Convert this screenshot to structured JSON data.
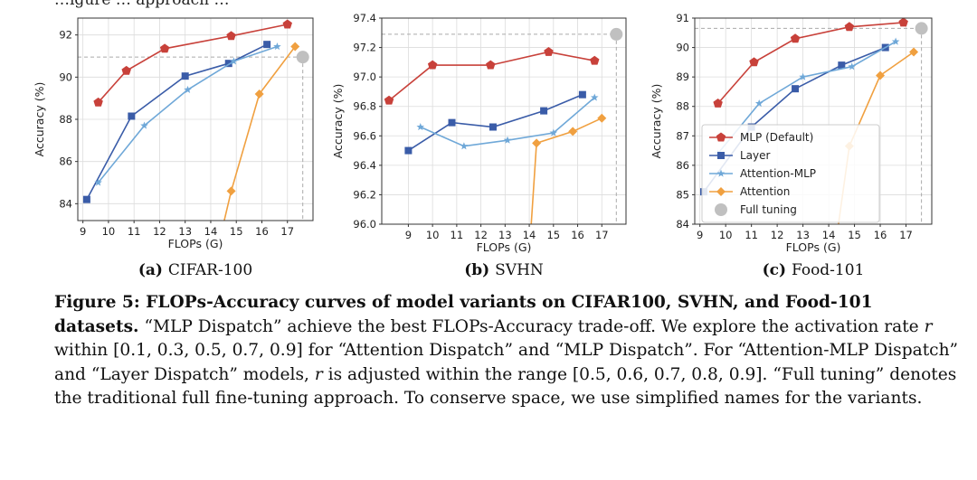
{
  "chart_data": [
    {
      "type": "line",
      "subtitle_letter": "(a)",
      "subtitle": "CIFAR-100",
      "xlabel": "FLOPs (G)",
      "ylabel": "Accuracy (%)",
      "xlim": [
        8.8,
        18.0
      ],
      "ylim": [
        83.2,
        92.8
      ],
      "xticks": [
        9,
        10,
        11,
        12,
        13,
        14,
        15,
        16,
        17
      ],
      "yticks": [
        84,
        86,
        88,
        90,
        92
      ],
      "grid": true,
      "ref_y": 90.95,
      "series": [
        {
          "name": "MLP (Default)",
          "color": "#c8413a",
          "marker": "pentagon",
          "x": [
            9.6,
            10.7,
            12.2,
            14.8,
            17.0
          ],
          "y": [
            88.8,
            90.3,
            91.35,
            91.95,
            92.5
          ]
        },
        {
          "name": "Layer",
          "color": "#3a5ca8",
          "marker": "square",
          "x": [
            9.15,
            10.9,
            13.0,
            14.7,
            16.2
          ],
          "y": [
            84.2,
            88.15,
            90.05,
            90.65,
            91.55
          ]
        },
        {
          "name": "Attention-MLP",
          "color": "#6fa8d8",
          "marker": "star",
          "x": [
            9.6,
            11.4,
            13.1,
            14.9,
            16.6
          ],
          "y": [
            85.0,
            87.7,
            89.4,
            90.75,
            91.45
          ]
        },
        {
          "name": "Attention",
          "color": "#f0a040",
          "marker": "diamond",
          "x": [
            14.1,
            14.8,
            15.9,
            17.3
          ],
          "y": [
            81.0,
            84.6,
            89.2,
            91.45
          ]
        },
        {
          "name": "Full tuning",
          "color": "#c0c0c0",
          "marker": "circle",
          "x": [
            17.6
          ],
          "y": [
            90.95
          ]
        }
      ]
    },
    {
      "type": "line",
      "subtitle_letter": "(b)",
      "subtitle": "SVHN",
      "xlabel": "FLOPs (G)",
      "ylabel": "Accuracy (%)",
      "xlim": [
        7.9,
        18.0
      ],
      "ylim": [
        96.0,
        97.4
      ],
      "xticks": [
        9,
        10,
        11,
        12,
        13,
        14,
        15,
        16,
        17
      ],
      "yticks": [
        96.0,
        96.2,
        96.4,
        96.6,
        96.8,
        97.0,
        97.2,
        97.4
      ],
      "grid": true,
      "ref_y": 97.29,
      "series": [
        {
          "name": "MLP (Default)",
          "color": "#c8413a",
          "marker": "pentagon",
          "x": [
            8.2,
            10.0,
            12.4,
            14.8,
            16.7
          ],
          "y": [
            96.84,
            97.08,
            97.08,
            97.17,
            97.11
          ]
        },
        {
          "name": "Layer",
          "color": "#3a5ca8",
          "marker": "square",
          "x": [
            9.0,
            10.8,
            12.5,
            14.6,
            16.2
          ],
          "y": [
            96.5,
            96.69,
            96.66,
            96.77,
            96.88
          ]
        },
        {
          "name": "Attention-MLP",
          "color": "#6fa8d8",
          "marker": "star",
          "x": [
            9.5,
            11.3,
            13.1,
            15.0,
            16.7
          ],
          "y": [
            96.66,
            96.53,
            96.57,
            96.62,
            96.86
          ]
        },
        {
          "name": "Attention",
          "color": "#f0a040",
          "marker": "diamond",
          "x": [
            14.0,
            14.3,
            15.8,
            17.0
          ],
          "y": [
            95.8,
            96.55,
            96.63,
            96.72
          ]
        },
        {
          "name": "Full tuning",
          "color": "#c0c0c0",
          "marker": "circle",
          "x": [
            17.6
          ],
          "y": [
            97.29
          ]
        }
      ]
    },
    {
      "type": "line",
      "subtitle_letter": "(c)",
      "subtitle": "Food-101",
      "xlabel": "FLOPs (G)",
      "ylabel": "Accuracy (%)",
      "xlim": [
        8.8,
        18.0
      ],
      "ylim": [
        84.0,
        91.0
      ],
      "xticks": [
        9,
        10,
        11,
        12,
        13,
        14,
        15,
        16,
        17
      ],
      "yticks": [
        84,
        85,
        86,
        87,
        88,
        89,
        90,
        91
      ],
      "grid": true,
      "ref_y": 90.65,
      "legend": "center-right",
      "series": [
        {
          "name": "MLP (Default)",
          "color": "#c8413a",
          "marker": "pentagon",
          "x": [
            9.7,
            11.1,
            12.7,
            14.8,
            16.9
          ],
          "y": [
            88.1,
            89.5,
            90.3,
            90.7,
            90.85
          ]
        },
        {
          "name": "Layer",
          "color": "#3a5ca8",
          "marker": "square",
          "x": [
            9.15,
            11.0,
            12.7,
            14.5,
            16.2
          ],
          "y": [
            85.1,
            87.3,
            88.6,
            89.4,
            90.0
          ]
        },
        {
          "name": "Attention-MLP",
          "color": "#6fa8d8",
          "marker": "star",
          "x": [
            9.7,
            11.3,
            13.0,
            14.9,
            16.6
          ],
          "y": [
            86.4,
            88.1,
            89.0,
            89.35,
            90.2
          ]
        },
        {
          "name": "Attention",
          "color": "#f0a040",
          "marker": "diamond",
          "x": [
            14.3,
            14.8,
            16.0,
            17.3
          ],
          "y": [
            83.5,
            86.65,
            89.05,
            89.85
          ]
        },
        {
          "name": "Full tuning",
          "color": "#c0c0c0",
          "marker": "circle",
          "x": [
            17.6
          ],
          "y": [
            90.65
          ]
        }
      ]
    }
  ],
  "top_text": "…igure … approach …",
  "caption": {
    "figure_label": "Figure 5:",
    "bold_title": "FLOPs-Accuracy curves of model variants on CIFAR100, SVHN, and Food-101 datasets.",
    "s1": "“MLP Dispatch” achieve the best FLOPs-Accuracy trade-off. We explore the activation rate",
    "var_r": "r",
    "s2": "within [0.1, 0.3, 0.5, 0.7, 0.9] for “Attention Dispatch” and “MLP Dispatch”. For “Attention-MLP Dispatch” and “Layer Dispatch” models,",
    "s3": "is adjusted within the range [0.5, 0.6, 0.7, 0.8, 0.9]. “Full tuning” denotes the traditional full fine-tuning approach. To conserve space, we use simplified names for the variants."
  }
}
